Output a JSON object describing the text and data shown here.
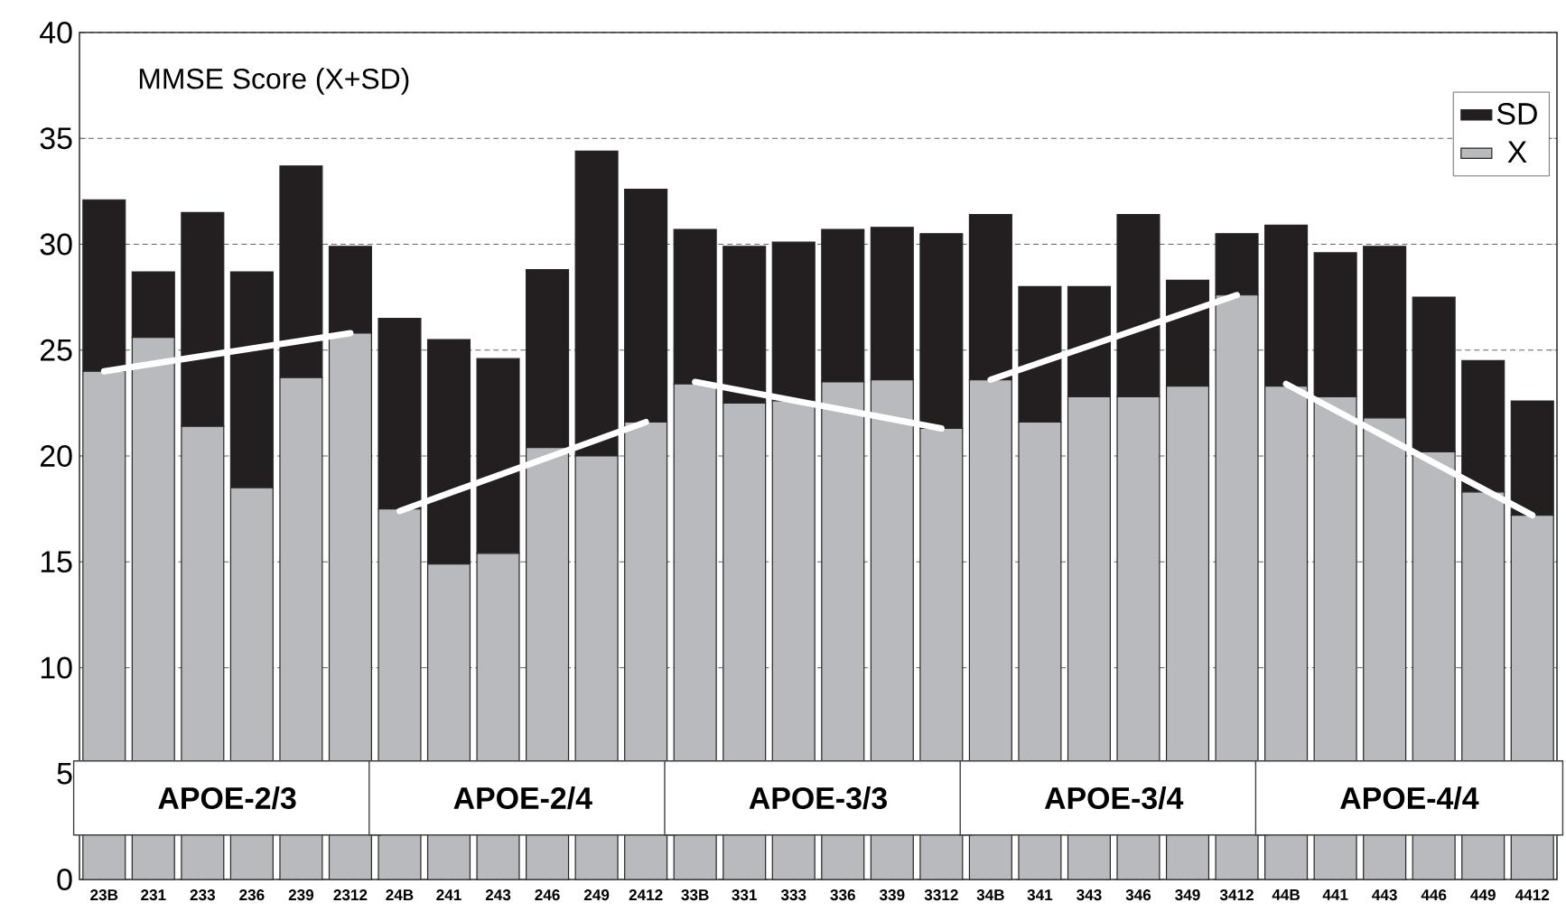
{
  "chart_data": {
    "type": "bar",
    "title": "MMSE Score (X+SD)",
    "categories": [
      "23B",
      "231",
      "233",
      "236",
      "239",
      "2312",
      "24B",
      "241",
      "243",
      "246",
      "249",
      "2412",
      "33B",
      "331",
      "333",
      "336",
      "339",
      "3312",
      "34B",
      "341",
      "343",
      "346",
      "349",
      "3412",
      "44B",
      "441",
      "443",
      "446",
      "449",
      "4412"
    ],
    "stacked": true,
    "series": [
      {
        "name": "X",
        "color": "#b9babd",
        "values": [
          24.0,
          25.6,
          21.4,
          18.5,
          23.7,
          25.8,
          17.5,
          14.9,
          15.4,
          20.4,
          20.0,
          21.6,
          23.4,
          22.5,
          22.6,
          23.5,
          23.6,
          21.3,
          23.6,
          21.6,
          22.8,
          22.8,
          23.3,
          27.6,
          23.3,
          22.8,
          21.8,
          20.2,
          18.3,
          17.2
        ]
      },
      {
        "name": "SD",
        "color": "#231f20",
        "values": [
          8.1,
          3.1,
          10.1,
          10.2,
          10.0,
          4.1,
          9.0,
          10.6,
          9.2,
          8.4,
          14.4,
          11.0,
          7.3,
          7.4,
          7.5,
          7.2,
          7.2,
          9.2,
          7.8,
          6.4,
          5.2,
          8.6,
          5.0,
          2.9,
          7.6,
          6.8,
          8.1,
          7.3,
          6.2,
          5.4
        ]
      },
      {
        "type": "line",
        "color": "#ffffff",
        "values": [
          24.0,
          null,
          null,
          null,
          null,
          25.8,
          null,
          null,
          null,
          null,
          null,
          null,
          null,
          null,
          null,
          null,
          null,
          null,
          null,
          null,
          null,
          null,
          null,
          null,
          null,
          null,
          null,
          null,
          null,
          null
        ]
      },
      {
        "type": "line",
        "color": "#ffffff",
        "values": [
          null,
          null,
          null,
          null,
          null,
          null,
          17.4,
          null,
          null,
          null,
          null,
          21.6,
          null,
          null,
          null,
          null,
          null,
          null,
          null,
          null,
          null,
          null,
          null,
          null,
          null,
          null,
          null,
          null,
          null,
          null
        ]
      },
      {
        "type": "line",
        "color": "#ffffff",
        "values": [
          null,
          null,
          null,
          null,
          null,
          null,
          null,
          null,
          null,
          null,
          null,
          null,
          23.5,
          null,
          null,
          null,
          null,
          21.3,
          null,
          null,
          null,
          null,
          null,
          null,
          null,
          null,
          null,
          null,
          null,
          null
        ]
      },
      {
        "type": "line",
        "color": "#ffffff",
        "values": [
          null,
          null,
          null,
          null,
          null,
          null,
          null,
          null,
          null,
          null,
          null,
          null,
          null,
          null,
          null,
          null,
          null,
          null,
          23.6,
          null,
          null,
          null,
          null,
          27.6,
          null,
          null,
          null,
          null,
          null,
          null
        ]
      },
      {
        "type": "line",
        "color": "#ffffff",
        "values": [
          null,
          null,
          null,
          null,
          null,
          null,
          null,
          null,
          null,
          null,
          null,
          null,
          null,
          null,
          null,
          null,
          null,
          null,
          null,
          null,
          null,
          null,
          null,
          null,
          23.4,
          null,
          null,
          null,
          null,
          17.2
        ]
      }
    ],
    "ylim": [
      0,
      40
    ],
    "yticks": [
      0,
      5,
      10,
      15,
      20,
      25,
      30,
      35,
      40
    ],
    "grid": "y",
    "legend": "top right",
    "annotations": [
      "APOE-2/3",
      "APOE-2/4",
      "APOE-3/3",
      "APOE-3/4",
      "APOE-4/4"
    ]
  }
}
